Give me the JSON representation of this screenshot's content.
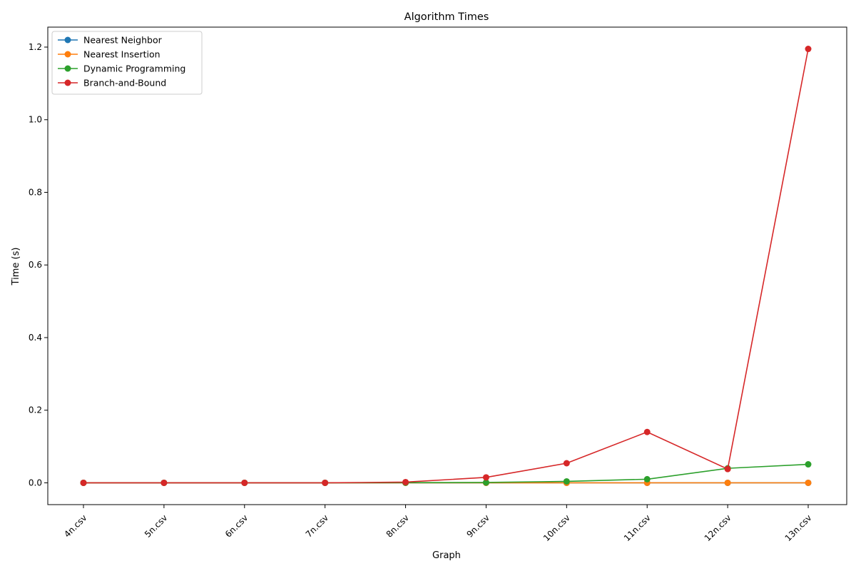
{
  "chart_data": {
    "type": "line",
    "title": "Algorithm Times",
    "xlabel": "Graph",
    "ylabel": "Time (s)",
    "categories": [
      "4n.csv",
      "5n.csv",
      "6n.csv",
      "7n.csv",
      "8n.csv",
      "9n.csv",
      "10n.csv",
      "11n.csv",
      "12n.csv",
      "13n.csv"
    ],
    "ylim": [
      -0.06,
      1.255
    ],
    "yticks": [
      0.0,
      0.2,
      0.4,
      0.6,
      0.8,
      1.0,
      1.2
    ],
    "ytick_labels": [
      "0.0",
      "0.2",
      "0.4",
      "0.6",
      "0.8",
      "1.0",
      "1.2"
    ],
    "grid": false,
    "legend_position": "top-left",
    "series": [
      {
        "name": "Nearest Neighbor",
        "color": "#1f77b4",
        "values": [
          0.0,
          0.0,
          0.0,
          0.0,
          0.0,
          0.0,
          0.0,
          0.0,
          0.0,
          0.0
        ]
      },
      {
        "name": "Nearest Insertion",
        "color": "#ff7f0e",
        "values": [
          0.0,
          0.0,
          0.0,
          0.0,
          0.0,
          0.0,
          0.0,
          0.0,
          0.0,
          0.0
        ]
      },
      {
        "name": "Dynamic Programming",
        "color": "#2ca02c",
        "values": [
          0.0,
          0.0,
          0.0,
          0.0,
          0.0005,
          0.001,
          0.004,
          0.01,
          0.04,
          0.051
        ]
      },
      {
        "name": "Branch-and-Bound",
        "color": "#d62728",
        "values": [
          0.0,
          0.0,
          0.0,
          0.0,
          0.002,
          0.015,
          0.054,
          0.14,
          0.038,
          1.195
        ]
      }
    ]
  }
}
